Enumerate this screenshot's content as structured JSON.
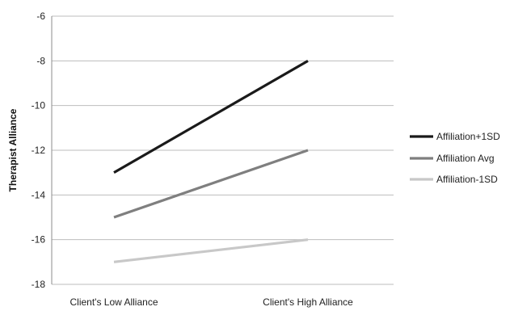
{
  "chart_data": {
    "type": "line",
    "ylabel": "Therapist Alliance",
    "ylim": [
      -18,
      -6
    ],
    "ytick_step": 2,
    "grid": true,
    "legend_position": "right",
    "categories": [
      "Client's Low Alliance",
      "Client's High Alliance"
    ],
    "series": [
      {
        "name": "Affiliation+1SD",
        "values": [
          -13,
          -8
        ],
        "color": "#1a1a1a"
      },
      {
        "name": "Affiliation Avg",
        "values": [
          -15,
          -12
        ],
        "color": "#7f7f7f"
      },
      {
        "name": "Affiliation-1SD",
        "values": [
          -17,
          -16
        ],
        "color": "#c8c8c8"
      }
    ]
  }
}
